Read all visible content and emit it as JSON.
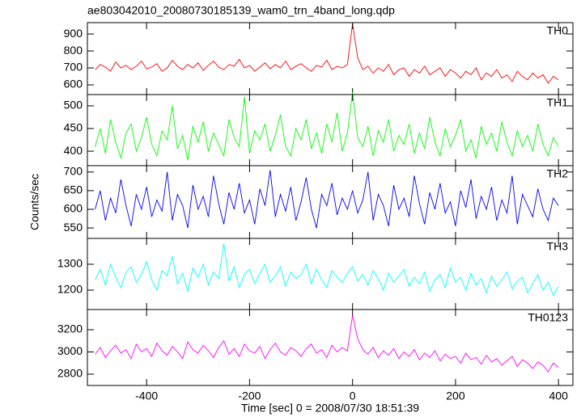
{
  "chart_data": {
    "type": "line",
    "title": "ae803042010_20080730185139_wam0_trn_4band_long.qdp",
    "xlabel": "Time [sec] 0 = 2008/07/30 18:51:39",
    "ylabel": "Counts/sec",
    "xlim": [
      -515,
      428
    ],
    "xticks": [
      -400,
      -200,
      0,
      200,
      400
    ],
    "x": [
      -500,
      -490,
      -480,
      -470,
      -460,
      -450,
      -440,
      -430,
      -420,
      -410,
      -400,
      -390,
      -380,
      -370,
      -360,
      -350,
      -340,
      -330,
      -320,
      -310,
      -300,
      -290,
      -280,
      -270,
      -260,
      -250,
      -240,
      -230,
      -220,
      -210,
      -200,
      -190,
      -180,
      -170,
      -160,
      -150,
      -140,
      -130,
      -120,
      -110,
      -100,
      -90,
      -80,
      -70,
      -60,
      -50,
      -40,
      -30,
      -20,
      -10,
      0,
      10,
      20,
      30,
      40,
      50,
      60,
      70,
      80,
      90,
      100,
      110,
      120,
      130,
      140,
      150,
      160,
      170,
      180,
      190,
      200,
      210,
      220,
      230,
      240,
      250,
      260,
      270,
      280,
      290,
      300,
      310,
      320,
      330,
      340,
      350,
      360,
      370,
      380,
      390,
      400
    ],
    "series": [
      {
        "name": "TH0",
        "color": "#ff0000",
        "ylim": [
          543,
          967
        ],
        "yticks": [
          600,
          700,
          800,
          900
        ],
        "values": [
          690,
          720,
          705,
          680,
          735,
          700,
          715,
          690,
          710,
          740,
          695,
          705,
          725,
          680,
          700,
          745,
          710,
          690,
          720,
          700,
          730,
          685,
          715,
          740,
          705,
          690,
          720,
          710,
          750,
          700,
          715,
          680,
          705,
          730,
          695,
          720,
          700,
          740,
          690,
          710,
          725,
          700,
          680,
          715,
          705,
          745,
          690,
          710,
          700,
          720,
          960,
          760,
          690,
          710,
          670,
          700,
          680,
          720,
          660,
          690,
          700,
          650,
          690,
          670,
          710,
          660,
          680,
          700,
          650,
          690,
          670,
          640,
          680,
          660,
          700,
          630,
          670,
          650,
          690,
          640,
          660,
          620,
          680,
          650,
          630,
          670,
          640,
          660,
          610,
          650,
          630
        ]
      },
      {
        "name": "TH1",
        "color": "#00ff00",
        "ylim": [
          368,
          525
        ],
        "yticks": [
          400,
          450,
          500
        ],
        "values": [
          410,
          450,
          395,
          470,
          420,
          385,
          440,
          460,
          400,
          430,
          475,
          415,
          390,
          445,
          425,
          500,
          405,
          435,
          380,
          455,
          420,
          465,
          400,
          440,
          415,
          390,
          470,
          430,
          410,
          520,
          395,
          445,
          425,
          460,
          400,
          435,
          480,
          410,
          390,
          450,
          425,
          470,
          405,
          440,
          395,
          460,
          420,
          485,
          400,
          440,
          530,
          430,
          410,
          455,
          390,
          445,
          420,
          470,
          400,
          435,
          415,
          460,
          395,
          440,
          405,
          475,
          420,
          390,
          450,
          410,
          435,
          470,
          400,
          425,
          385,
          455,
          415,
          440,
          400,
          465,
          420,
          390,
          445,
          410,
          435,
          400,
          460,
          415,
          390,
          430,
          410
        ]
      },
      {
        "name": "TH2",
        "color": "#0000ff",
        "ylim": [
          522,
          717
        ],
        "yticks": [
          550,
          600,
          650,
          700
        ],
        "values": [
          600,
          650,
          570,
          630,
          590,
          680,
          610,
          555,
          640,
          600,
          660,
          580,
          625,
          595,
          700,
          570,
          640,
          610,
          550,
          665,
          600,
          635,
          580,
          690,
          615,
          560,
          645,
          600,
          670,
          590,
          625,
          560,
          655,
          610,
          705,
          580,
          640,
          595,
          660,
          570,
          620,
          685,
          600,
          550,
          640,
          610,
          670,
          585,
          630,
          600,
          650,
          590,
          625,
          700,
          570,
          640,
          610,
          555,
          665,
          600,
          630,
          580,
          690,
          615,
          560,
          645,
          600,
          670,
          590,
          620,
          555,
          650,
          605,
          680,
          575,
          635,
          600,
          660,
          570,
          625,
          590,
          690,
          560,
          640,
          610,
          580,
          655,
          600,
          570,
          630,
          610
        ]
      },
      {
        "name": "TH3",
        "color": "#00ffff",
        "ylim": [
          1125,
          1400
        ],
        "yticks": [
          1200,
          1300
        ],
        "values": [
          1240,
          1280,
          1220,
          1300,
          1250,
          1210,
          1270,
          1290,
          1230,
          1260,
          1310,
          1240,
          1200,
          1275,
          1255,
          1330,
          1225,
          1265,
          1195,
          1285,
          1250,
          1300,
          1220,
          1270,
          1245,
          1380,
          1235,
          1290,
          1210,
          1260,
          1280,
          1225,
          1265,
          1300,
          1230,
          1255,
          1290,
          1215,
          1270,
          1245,
          1260,
          1300,
          1225,
          1280,
          1240,
          1210,
          1275,
          1250,
          1230,
          1265,
          1290,
          1235,
          1260,
          1220,
          1275,
          1245,
          1200,
          1265,
          1230,
          1255,
          1280,
          1215,
          1250,
          1225,
          1270,
          1195,
          1240,
          1260,
          1210,
          1285,
          1230,
          1250,
          1200,
          1265,
          1220,
          1245,
          1190,
          1255,
          1215,
          1240,
          1270,
          1205,
          1235,
          1250,
          1190,
          1225,
          1260,
          1200,
          1230,
          1180,
          1215
        ]
      },
      {
        "name": "TH0123",
        "color": "#ff00ff",
        "ylim": [
          2698,
          3382
        ],
        "yticks": [
          2800,
          3000,
          3200
        ],
        "values": [
          2980,
          3040,
          2950,
          3010,
          3060,
          2990,
          3020,
          2940,
          3070,
          3000,
          3030,
          2960,
          3080,
          3010,
          2970,
          3050,
          3000,
          2940,
          3090,
          3020,
          2990,
          3060,
          3010,
          2950,
          3040,
          3100,
          2980,
          3030,
          2960,
          3070,
          3010,
          2990,
          3050,
          2940,
          3020,
          3080,
          3000,
          2970,
          3040,
          3010,
          2960,
          3030,
          3070,
          2990,
          3020,
          2950,
          3060,
          3000,
          3040,
          3010,
          3330,
          3120,
          3020,
          2980,
          3040,
          2950,
          3010,
          2970,
          3030,
          2940,
          3000,
          2960,
          3020,
          2930,
          2990,
          2950,
          3010,
          2920,
          2980,
          2940,
          2960,
          2900,
          2990,
          2930,
          2950,
          2890,
          2970,
          2910,
          2940,
          2880,
          2920,
          2960,
          2870,
          2930,
          2900,
          2850,
          2910,
          2880,
          2820,
          2900,
          2860
        ]
      }
    ]
  }
}
